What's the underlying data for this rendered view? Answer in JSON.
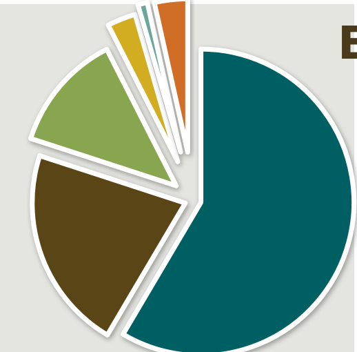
{
  "title": "E",
  "chart_data": {
    "type": "pie",
    "title": "E",
    "slices": [
      {
        "value": 58.5,
        "color": "#065e64"
      },
      {
        "value": 21.5,
        "color": "#5a4519"
      },
      {
        "value": 12.5,
        "color": "#88a64f"
      },
      {
        "value": 3.0,
        "color": "#d2ad24"
      },
      {
        "value": 1.0,
        "color": "#6ea59a"
      },
      {
        "value": 3.5,
        "color": "#d06d28"
      }
    ],
    "legend": "none",
    "exploded": true
  }
}
